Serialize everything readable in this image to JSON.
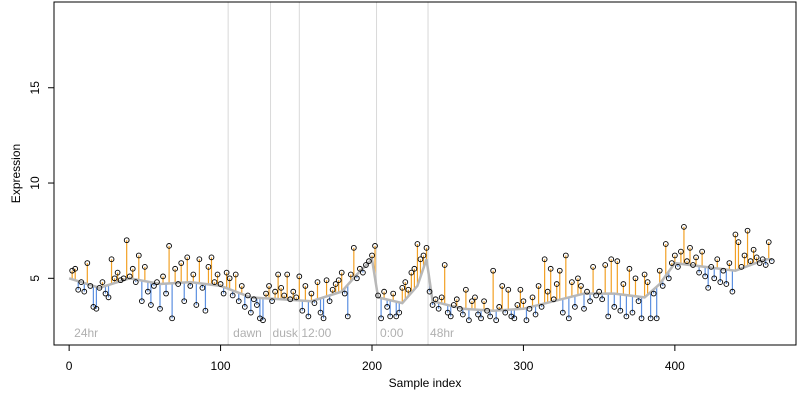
{
  "chart_data": {
    "type": "scatter",
    "title": "",
    "xlabel": "Sample index",
    "ylabel": "Expression",
    "xlim": [
      -10,
      480
    ],
    "ylim": [
      1.5,
      19.5
    ],
    "x_ticks": [
      "0",
      "100",
      "200",
      "300",
      "400"
    ],
    "x_tick_values": [
      0,
      100,
      200,
      300,
      400
    ],
    "y_ticks": [
      "5",
      "10",
      "15"
    ],
    "y_tick_values": [
      5,
      10,
      15
    ],
    "grid": false,
    "annotations": [
      {
        "label": "24hr",
        "x": 2
      },
      {
        "label": "dawn",
        "x": 107
      },
      {
        "label": "dusk",
        "x": 133
      },
      {
        "label": "12:00",
        "x": 152
      },
      {
        "label": "0:00",
        "x": 204
      },
      {
        "label": "48hr",
        "x": 237
      }
    ],
    "vlines": [
      105,
      133,
      152,
      203,
      237
    ],
    "colors": {
      "above_fit": "#f2a024",
      "below_fit": "#5b8fe0",
      "fit_line": "#b8b8b8",
      "points": "#000000",
      "divider": "#d8d8d8",
      "annotation_text": "#b0b0b0"
    },
    "series": [
      {
        "values": [
          [
            2,
            5.4
          ],
          [
            4,
            5.5
          ],
          [
            6,
            4.4
          ],
          [
            8,
            4.8
          ],
          [
            10,
            4.3
          ],
          [
            12,
            5.8
          ],
          [
            14,
            4.6
          ],
          [
            16,
            3.5
          ],
          [
            18,
            3.4
          ],
          [
            20,
            4.5
          ],
          [
            22,
            4.8
          ],
          [
            24,
            4.2
          ],
          [
            26,
            4.0
          ],
          [
            28,
            6.0
          ],
          [
            30,
            5.0
          ],
          [
            32,
            5.3
          ],
          [
            34,
            4.9
          ],
          [
            36,
            5.0
          ],
          [
            38,
            7.0
          ],
          [
            40,
            5.1
          ],
          [
            42,
            5.5
          ],
          [
            44,
            4.8
          ],
          [
            46,
            6.2
          ],
          [
            48,
            3.8
          ],
          [
            50,
            5.6
          ],
          [
            52,
            4.3
          ],
          [
            54,
            3.6
          ],
          [
            56,
            4.6
          ],
          [
            58,
            4.8
          ],
          [
            60,
            3.4
          ],
          [
            62,
            5.1
          ],
          [
            64,
            4.2
          ],
          [
            66,
            6.7
          ],
          [
            68,
            2.9
          ],
          [
            70,
            5.5
          ],
          [
            72,
            4.7
          ],
          [
            74,
            5.8
          ],
          [
            76,
            3.8
          ],
          [
            78,
            6.1
          ],
          [
            80,
            4.6
          ],
          [
            82,
            5.2
          ],
          [
            84,
            3.6
          ],
          [
            86,
            6.0
          ],
          [
            88,
            4.5
          ],
          [
            90,
            3.3
          ],
          [
            92,
            5.6
          ],
          [
            94,
            6.1
          ],
          [
            96,
            4.8
          ],
          [
            98,
            5.2
          ],
          [
            100,
            4.7
          ],
          [
            102,
            4.2
          ],
          [
            104,
            5.3
          ],
          [
            106,
            5.0
          ],
          [
            108,
            4.1
          ],
          [
            110,
            5.2
          ],
          [
            112,
            3.8
          ],
          [
            114,
            4.6
          ],
          [
            116,
            3.5
          ],
          [
            118,
            4.1
          ],
          [
            120,
            3.2
          ],
          [
            122,
            3.9
          ],
          [
            124,
            3.6
          ],
          [
            126,
            2.9
          ],
          [
            128,
            2.8
          ],
          [
            130,
            4.2
          ],
          [
            132,
            4.6
          ],
          [
            134,
            3.8
          ],
          [
            136,
            4.3
          ],
          [
            138,
            5.2
          ],
          [
            140,
            4.5
          ],
          [
            142,
            4.1
          ],
          [
            144,
            5.2
          ],
          [
            146,
            3.9
          ],
          [
            148,
            4.3
          ],
          [
            150,
            4.0
          ],
          [
            152,
            5.1
          ],
          [
            154,
            3.3
          ],
          [
            156,
            4.6
          ],
          [
            158,
            3.0
          ],
          [
            160,
            4.2
          ],
          [
            162,
            3.7
          ],
          [
            164,
            4.8
          ],
          [
            166,
            3.2
          ],
          [
            168,
            2.9
          ],
          [
            170,
            4.9
          ],
          [
            172,
            3.8
          ],
          [
            174,
            4.4
          ],
          [
            176,
            4.7
          ],
          [
            178,
            4.9
          ],
          [
            180,
            5.3
          ],
          [
            182,
            4.2
          ],
          [
            184,
            3.0
          ],
          [
            186,
            5.2
          ],
          [
            188,
            6.6
          ],
          [
            190,
            5.0
          ],
          [
            192,
            5.5
          ],
          [
            194,
            5.3
          ],
          [
            196,
            5.7
          ],
          [
            198,
            5.9
          ],
          [
            200,
            6.2
          ],
          [
            202,
            6.7
          ],
          [
            204,
            4.1
          ],
          [
            206,
            2.9
          ],
          [
            208,
            4.3
          ],
          [
            210,
            3.5
          ],
          [
            212,
            3.0
          ],
          [
            214,
            4.2
          ],
          [
            216,
            3.0
          ],
          [
            218,
            3.2
          ],
          [
            220,
            4.5
          ],
          [
            222,
            4.8
          ],
          [
            224,
            4.4
          ],
          [
            226,
            5.3
          ],
          [
            228,
            5.5
          ],
          [
            230,
            6.8
          ],
          [
            232,
            6.0
          ],
          [
            234,
            6.2
          ],
          [
            236,
            6.6
          ],
          [
            238,
            4.3
          ],
          [
            240,
            3.6
          ],
          [
            242,
            3.9
          ],
          [
            244,
            3.4
          ],
          [
            246,
            4.0
          ],
          [
            248,
            5.7
          ],
          [
            250,
            3.2
          ],
          [
            252,
            3.0
          ],
          [
            254,
            3.6
          ],
          [
            256,
            3.9
          ],
          [
            258,
            3.4
          ],
          [
            260,
            3.1
          ],
          [
            262,
            4.4
          ],
          [
            264,
            2.8
          ],
          [
            266,
            3.8
          ],
          [
            268,
            4.0
          ],
          [
            270,
            3.1
          ],
          [
            272,
            2.9
          ],
          [
            274,
            3.8
          ],
          [
            276,
            3.3
          ],
          [
            278,
            3.0
          ],
          [
            280,
            5.4
          ],
          [
            282,
            2.8
          ],
          [
            284,
            3.5
          ],
          [
            286,
            4.6
          ],
          [
            288,
            3.2
          ],
          [
            290,
            4.4
          ],
          [
            292,
            3.0
          ],
          [
            294,
            2.9
          ],
          [
            296,
            3.6
          ],
          [
            298,
            4.4
          ],
          [
            300,
            3.8
          ],
          [
            302,
            2.8
          ],
          [
            304,
            3.4
          ],
          [
            306,
            4.0
          ],
          [
            308,
            3.1
          ],
          [
            310,
            4.6
          ],
          [
            312,
            3.5
          ],
          [
            314,
            6.0
          ],
          [
            316,
            4.3
          ],
          [
            318,
            5.5
          ],
          [
            320,
            3.9
          ],
          [
            322,
            4.7
          ],
          [
            324,
            5.4
          ],
          [
            326,
            3.2
          ],
          [
            328,
            6.2
          ],
          [
            330,
            2.9
          ],
          [
            332,
            4.8
          ],
          [
            334,
            3.5
          ],
          [
            336,
            5.0
          ],
          [
            338,
            4.6
          ],
          [
            340,
            3.4
          ],
          [
            342,
            4.3
          ],
          [
            344,
            3.8
          ],
          [
            346,
            5.6
          ],
          [
            348,
            4.1
          ],
          [
            350,
            4.3
          ],
          [
            352,
            3.9
          ],
          [
            354,
            5.7
          ],
          [
            356,
            3.0
          ],
          [
            358,
            6.0
          ],
          [
            360,
            3.5
          ],
          [
            362,
            5.9
          ],
          [
            364,
            3.3
          ],
          [
            366,
            4.7
          ],
          [
            368,
            3.0
          ],
          [
            370,
            5.5
          ],
          [
            372,
            3.2
          ],
          [
            374,
            5.0
          ],
          [
            376,
            3.8
          ],
          [
            378,
            2.9
          ],
          [
            380,
            5.2
          ],
          [
            382,
            4.8
          ],
          [
            384,
            2.9
          ],
          [
            386,
            4.2
          ],
          [
            388,
            2.9
          ],
          [
            390,
            5.4
          ],
          [
            392,
            4.6
          ],
          [
            394,
            6.8
          ],
          [
            396,
            5.0
          ],
          [
            398,
            5.8
          ],
          [
            400,
            6.2
          ],
          [
            402,
            5.6
          ],
          [
            404,
            6.4
          ],
          [
            406,
            7.7
          ],
          [
            408,
            5.9
          ],
          [
            410,
            6.6
          ],
          [
            412,
            5.7
          ],
          [
            414,
            6.1
          ],
          [
            416,
            5.3
          ],
          [
            418,
            6.4
          ],
          [
            420,
            5.1
          ],
          [
            422,
            4.5
          ],
          [
            424,
            5.6
          ],
          [
            426,
            5.0
          ],
          [
            428,
            6.0
          ],
          [
            430,
            4.8
          ],
          [
            432,
            5.4
          ],
          [
            434,
            4.7
          ],
          [
            436,
            5.8
          ],
          [
            438,
            4.3
          ],
          [
            440,
            7.3
          ],
          [
            442,
            6.9
          ],
          [
            444,
            5.6
          ],
          [
            446,
            6.2
          ],
          [
            448,
            7.5
          ],
          [
            450,
            5.9
          ],
          [
            452,
            6.5
          ],
          [
            454,
            6.1
          ],
          [
            456,
            5.8
          ],
          [
            458,
            6.0
          ],
          [
            460,
            5.7
          ],
          [
            462,
            6.9
          ],
          [
            464,
            5.9
          ]
        ]
      }
    ],
    "fit": [
      [
        0,
        5.0
      ],
      [
        20,
        4.5
      ],
      [
        40,
        5.0
      ],
      [
        60,
        4.7
      ],
      [
        80,
        4.8
      ],
      [
        100,
        4.6
      ],
      [
        120,
        4.0
      ],
      [
        140,
        3.9
      ],
      [
        160,
        3.8
      ],
      [
        180,
        4.3
      ],
      [
        190,
        5.2
      ],
      [
        200,
        6.0
      ],
      [
        204,
        4.0
      ],
      [
        220,
        3.7
      ],
      [
        230,
        4.6
      ],
      [
        236,
        6.0
      ],
      [
        240,
        3.8
      ],
      [
        260,
        3.4
      ],
      [
        280,
        3.3
      ],
      [
        300,
        3.4
      ],
      [
        320,
        3.8
      ],
      [
        340,
        4.2
      ],
      [
        360,
        4.2
      ],
      [
        380,
        4.0
      ],
      [
        390,
        4.7
      ],
      [
        400,
        5.8
      ],
      [
        420,
        5.6
      ],
      [
        440,
        5.4
      ],
      [
        460,
        6.0
      ],
      [
        464,
        6.0
      ]
    ]
  }
}
